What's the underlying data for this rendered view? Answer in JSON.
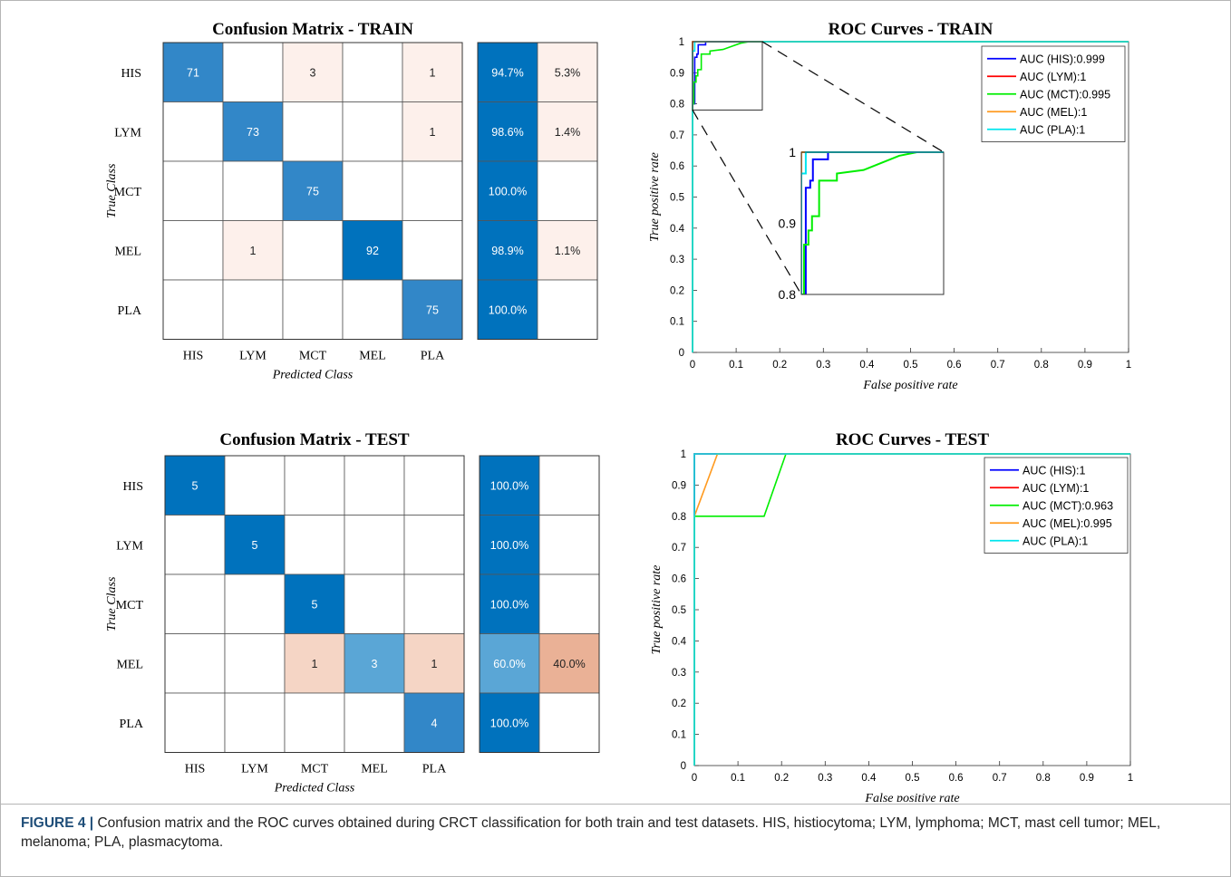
{
  "classes": [
    "HIS",
    "LYM",
    "MCT",
    "MEL",
    "PLA"
  ],
  "colors": {
    "diag_dark": "#0072bd",
    "diag_mid": "#3287c8",
    "diag_light": "#5aa6d6",
    "off_faint": "#fdf0eb",
    "off_mid": "#f5d5c5",
    "off_strong": "#eab196",
    "his": "#0000ff",
    "lym": "#ff0000",
    "mct": "#00ee00",
    "mel": "#ff9a1f",
    "pla": "#00e5ee",
    "dash": "#000000"
  },
  "chart_data": [
    {
      "type": "heatmap",
      "title": "Confusion Matrix - TRAIN",
      "xlabel": "Predicted Class",
      "ylabel": "True Class",
      "rows": [
        "HIS",
        "LYM",
        "MCT",
        "MEL",
        "PLA"
      ],
      "cols": [
        "HIS",
        "LYM",
        "MCT",
        "MEL",
        "PLA"
      ],
      "values": [
        [
          71,
          null,
          3,
          null,
          1
        ],
        [
          null,
          73,
          null,
          null,
          1
        ],
        [
          null,
          null,
          75,
          null,
          null
        ],
        [
          null,
          1,
          null,
          92,
          null
        ],
        [
          null,
          null,
          null,
          null,
          75
        ]
      ],
      "row_summary": [
        [
          "94.7%",
          "5.3%"
        ],
        [
          "98.6%",
          "1.4%"
        ],
        [
          "100.0%",
          ""
        ],
        [
          "98.9%",
          "1.1%"
        ],
        [
          "100.0%",
          ""
        ]
      ]
    },
    {
      "type": "line",
      "title": "ROC Curves - TRAIN",
      "xlabel": "False positive rate",
      "ylabel": "True positive rate",
      "xlim": [
        0,
        1
      ],
      "ylim": [
        0,
        1
      ],
      "xticks": [
        "0",
        "0.1",
        "0.2",
        "0.3",
        "0.4",
        "0.5",
        "0.6",
        "0.7",
        "0.8",
        "0.9",
        "1"
      ],
      "yticks": [
        "0",
        "0.1",
        "0.2",
        "0.3",
        "0.4",
        "0.5",
        "0.6",
        "0.7",
        "0.8",
        "0.9",
        "1"
      ],
      "legend_position": "top-right",
      "series": [
        {
          "name": "AUC (HIS):0.999",
          "color": "#0000ff",
          "x": [
            0,
            0,
            0.005,
            0.005,
            0.01,
            0.01,
            0.013,
            0.013,
            0.03,
            0.03,
            0.05,
            1
          ],
          "y": [
            0,
            0.8,
            0.8,
            0.95,
            0.95,
            0.96,
            0.96,
            0.99,
            0.99,
            1,
            1,
            1
          ]
        },
        {
          "name": "AUC (LYM):1",
          "color": "#ff0000",
          "x": [
            0,
            0,
            1
          ],
          "y": [
            0,
            1,
            1
          ]
        },
        {
          "name": "AUC (MCT):0.995",
          "color": "#00ee00",
          "x": [
            0,
            0,
            0.003,
            0.003,
            0.008,
            0.008,
            0.012,
            0.012,
            0.02,
            0.02,
            0.04,
            0.04,
            0.07,
            0.09,
            0.11,
            0.13,
            1
          ],
          "y": [
            0,
            0.8,
            0.8,
            0.87,
            0.87,
            0.89,
            0.89,
            0.91,
            0.91,
            0.96,
            0.96,
            0.97,
            0.975,
            0.985,
            0.995,
            1,
            1
          ]
        },
        {
          "name": "AUC (MEL):1",
          "color": "#ff9a1f",
          "x": [
            0,
            0,
            1
          ],
          "y": [
            0,
            1,
            1
          ]
        },
        {
          "name": "AUC (PLA):1",
          "color": "#00e5ee",
          "x": [
            0,
            0,
            0.005,
            0.005,
            1
          ],
          "y": [
            0,
            0.97,
            0.97,
            1,
            1
          ]
        }
      ],
      "zoom_region": {
        "x": [
          0,
          0.16
        ],
        "y": [
          0.78,
          1
        ]
      },
      "inset": {
        "xlim": [
          0,
          0.16
        ],
        "ylim": [
          0.8,
          1
        ],
        "yticks": [
          "0.8",
          "0.9",
          "1"
        ]
      }
    },
    {
      "type": "heatmap",
      "title": "Confusion Matrix - TEST",
      "xlabel": "Predicted Class",
      "ylabel": "True Class",
      "rows": [
        "HIS",
        "LYM",
        "MCT",
        "MEL",
        "PLA"
      ],
      "cols": [
        "HIS",
        "LYM",
        "MCT",
        "MEL",
        "PLA"
      ],
      "values": [
        [
          5,
          null,
          null,
          null,
          null
        ],
        [
          null,
          5,
          null,
          null,
          null
        ],
        [
          null,
          null,
          5,
          null,
          null
        ],
        [
          null,
          null,
          1,
          3,
          1
        ],
        [
          null,
          null,
          null,
          null,
          4
        ]
      ],
      "row_summary": [
        [
          "100.0%",
          ""
        ],
        [
          "100.0%",
          ""
        ],
        [
          "100.0%",
          ""
        ],
        [
          "60.0%",
          "40.0%"
        ],
        [
          "100.0%",
          ""
        ]
      ]
    },
    {
      "type": "line",
      "title": "ROC Curves - TEST",
      "xlabel": "False positive rate",
      "ylabel": "True positive rate",
      "xlim": [
        0,
        1
      ],
      "ylim": [
        0,
        1
      ],
      "xticks": [
        "0",
        "0.1",
        "0.2",
        "0.3",
        "0.4",
        "0.5",
        "0.6",
        "0.7",
        "0.8",
        "0.9",
        "1"
      ],
      "yticks": [
        "0",
        "0.1",
        "0.2",
        "0.3",
        "0.4",
        "0.5",
        "0.6",
        "0.7",
        "0.8",
        "0.9",
        "1"
      ],
      "legend_position": "top-right",
      "series": [
        {
          "name": "AUC (HIS):1",
          "color": "#0000ff",
          "x": [
            0,
            0,
            1
          ],
          "y": [
            0,
            1,
            1
          ]
        },
        {
          "name": "AUC (LYM):1",
          "color": "#ff0000",
          "x": [
            0,
            0,
            1
          ],
          "y": [
            0,
            1,
            1
          ]
        },
        {
          "name": "AUC (MCT):0.963",
          "color": "#00ee00",
          "x": [
            0,
            0,
            0.16,
            0.21,
            1
          ],
          "y": [
            0,
            0.8,
            0.8,
            1,
            1
          ]
        },
        {
          "name": "AUC (MEL):0.995",
          "color": "#ff9a1f",
          "x": [
            0,
            0,
            0.053,
            1
          ],
          "y": [
            0,
            0.8,
            1,
            1
          ]
        },
        {
          "name": "AUC (PLA):1",
          "color": "#00e5ee",
          "x": [
            0,
            0,
            1
          ],
          "y": [
            0,
            1,
            1
          ]
        }
      ]
    }
  ],
  "caption": {
    "label": "FIGURE 4 |",
    "text": "Confusion matrix and the ROC curves obtained during CRCT classification for both train and test datasets. HIS, histiocytoma; LYM, lymphoma; MCT, mast cell tumor; MEL, melanoma; PLA, plasmacytoma."
  }
}
